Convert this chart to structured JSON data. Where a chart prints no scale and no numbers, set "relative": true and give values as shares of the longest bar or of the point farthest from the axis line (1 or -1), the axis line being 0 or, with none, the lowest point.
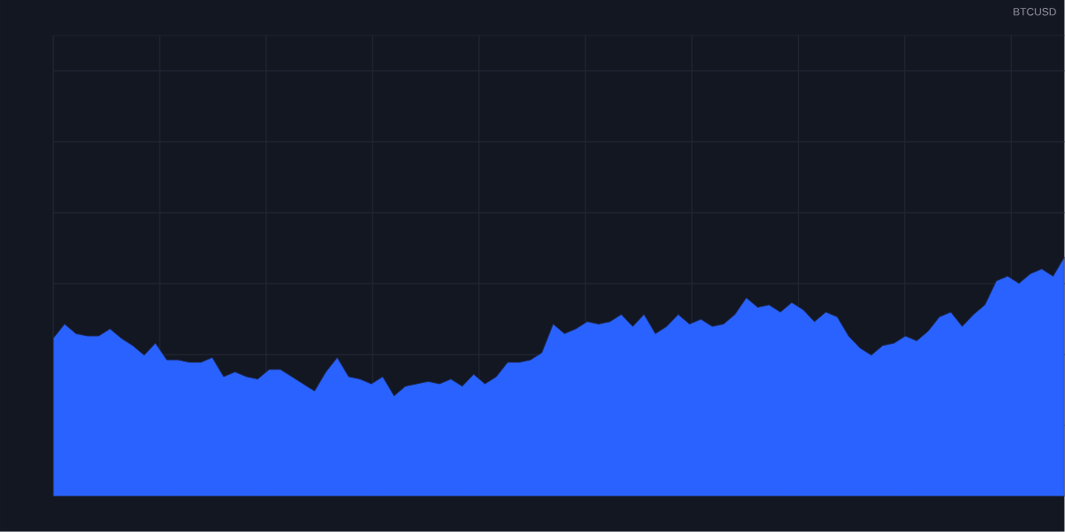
{
  "chart_data": {
    "type": "area",
    "relative": true,
    "grid": true,
    "color": "#2962ff",
    "annotations": [
      "BTCUSD"
    ],
    "categories": [
      null,
      null,
      null,
      null,
      null,
      null,
      null,
      null,
      null,
      null,
      null,
      null,
      null,
      null,
      null,
      null,
      null,
      null,
      null,
      null,
      null,
      null,
      null,
      null,
      null,
      null,
      null,
      null,
      null,
      null,
      null,
      null,
      null,
      null,
      null,
      null,
      null,
      null,
      null,
      null,
      null,
      null,
      null,
      null,
      null,
      null,
      null,
      null,
      null,
      null,
      null,
      null,
      null,
      null,
      null,
      null,
      null,
      null,
      null,
      null,
      null,
      null,
      null,
      null,
      null,
      null,
      null,
      null,
      null,
      null,
      null,
      null,
      null,
      null,
      null,
      null,
      null,
      null,
      null,
      null,
      null,
      null,
      null,
      null,
      null,
      null,
      null,
      null,
      null,
      null
    ],
    "values": [
      0.66,
      0.72,
      0.68,
      0.67,
      0.67,
      0.7,
      0.66,
      0.63,
      0.59,
      0.64,
      0.57,
      0.57,
      0.56,
      0.56,
      0.58,
      0.5,
      0.52,
      0.5,
      0.49,
      0.53,
      0.53,
      0.5,
      0.47,
      0.44,
      0.52,
      0.58,
      0.5,
      0.49,
      0.47,
      0.5,
      0.42,
      0.46,
      0.47,
      0.48,
      0.47,
      0.49,
      0.46,
      0.51,
      0.47,
      0.5,
      0.56,
      0.56,
      0.57,
      0.6,
      0.72,
      0.68,
      0.7,
      0.73,
      0.72,
      0.73,
      0.76,
      0.71,
      0.76,
      0.68,
      0.71,
      0.76,
      0.72,
      0.74,
      0.71,
      0.72,
      0.76,
      0.83,
      0.79,
      0.8,
      0.77,
      0.81,
      0.78,
      0.73,
      0.77,
      0.75,
      0.67,
      0.62,
      0.59,
      0.63,
      0.64,
      0.67,
      0.65,
      0.69,
      0.75,
      0.77,
      0.71,
      0.76,
      0.8,
      0.9,
      0.92,
      0.89,
      0.93,
      0.95,
      0.92,
      1.0
    ]
  }
}
